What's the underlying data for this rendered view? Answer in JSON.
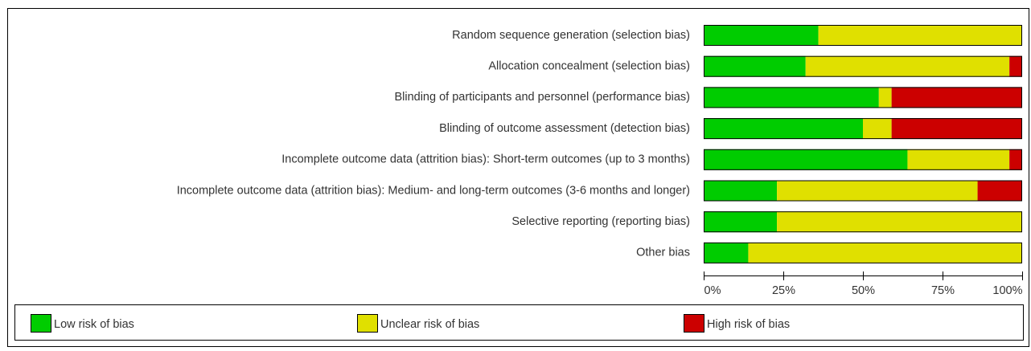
{
  "chart_data": {
    "type": "bar",
    "orientation": "horizontal",
    "stacked": true,
    "categories": [
      "Random sequence generation (selection bias)",
      "Allocation concealment (selection bias)",
      "Blinding of participants and personnel (performance bias)",
      "Blinding of outcome assessment (detection bias)",
      "Incomplete outcome data (attrition bias): Short-term outcomes (up to 3 months)",
      "Incomplete outcome data (attrition bias): Medium- and long-term outcomes (3-6 months and longer)",
      "Selective reporting (reporting bias)",
      "Other bias"
    ],
    "series": [
      {
        "name": "Low risk of bias",
        "color": "#00cc00",
        "values": [
          36,
          32,
          55,
          50,
          64,
          23,
          23,
          14
        ]
      },
      {
        "name": "Unclear risk of bias",
        "color": "#e0e000",
        "values": [
          64,
          64,
          4,
          9,
          32,
          63,
          77,
          86
        ]
      },
      {
        "name": "High risk of bias",
        "color": "#cc0000",
        "values": [
          0,
          4,
          41,
          41,
          4,
          14,
          0,
          0
        ]
      }
    ],
    "xlim": [
      0,
      100
    ],
    "xticks": [
      {
        "value": 0,
        "label": "0%"
      },
      {
        "value": 25,
        "label": "25%"
      },
      {
        "value": 50,
        "label": "50%"
      },
      {
        "value": 75,
        "label": "75%"
      },
      {
        "value": 100,
        "label": "100%"
      }
    ],
    "legend": "bottom"
  }
}
